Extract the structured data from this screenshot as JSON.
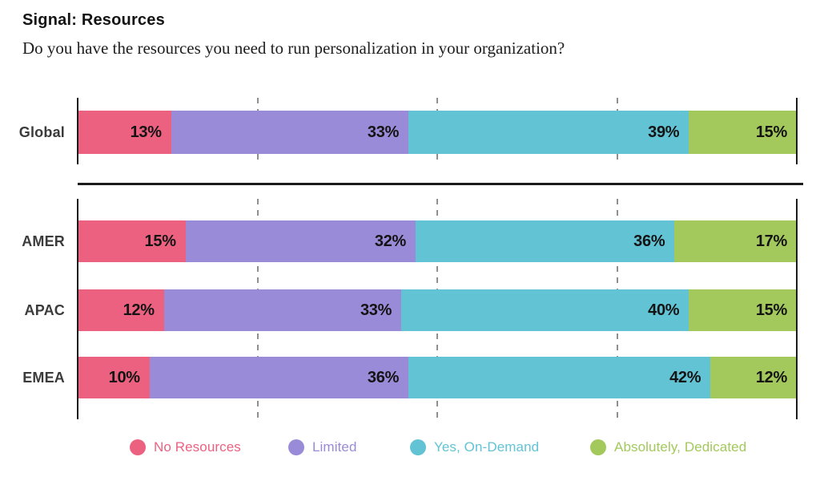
{
  "header": {
    "title": "Signal: Resources",
    "question": "Do you have the resources you need to run personalization in your organization?"
  },
  "colors": {
    "no_resources": "#ec6180",
    "limited": "#9a8bd8",
    "yes_on_demand": "#62c3d5",
    "absolutely_dedicated": "#a3c95c",
    "axis": "#1b1b1b",
    "gridline": "#8f8f8f",
    "value_label": "#141414",
    "row_label": "#3b3b3b"
  },
  "legend": {
    "items": [
      {
        "key": "no_resources",
        "label": "No Resources"
      },
      {
        "key": "limited",
        "label": "Limited"
      },
      {
        "key": "yes_on_demand",
        "label": "Yes, On-Demand"
      },
      {
        "key": "absolutely_dedicated",
        "label": "Absolutely, Dedicated"
      }
    ]
  },
  "chart_data": {
    "type": "bar",
    "stacked": true,
    "orientation": "horizontal",
    "unit": "%",
    "title": "Signal: Resources",
    "subtitle": "Do you have the resources you need to run personalization in your organization?",
    "xlim": [
      0,
      100
    ],
    "gridlines_pct": [
      25,
      50,
      75
    ],
    "grid": "dashed-vertical",
    "legend_position": "bottom",
    "series_keys": [
      "no_resources",
      "limited",
      "yes_on_demand",
      "absolutely_dedicated"
    ],
    "series_labels": [
      "No Resources",
      "Limited",
      "Yes, On-Demand",
      "Absolutely, Dedicated"
    ],
    "groups": [
      {
        "name": "global-group",
        "rows": [
          {
            "label": "Global",
            "values": [
              13,
              33,
              39,
              15
            ]
          }
        ]
      },
      {
        "name": "regions-group",
        "rows": [
          {
            "label": "AMER",
            "values": [
              15,
              32,
              36,
              17
            ]
          },
          {
            "label": "APAC",
            "values": [
              12,
              33,
              40,
              15
            ]
          },
          {
            "label": "EMEA",
            "values": [
              10,
              36,
              42,
              12
            ]
          }
        ]
      }
    ]
  }
}
